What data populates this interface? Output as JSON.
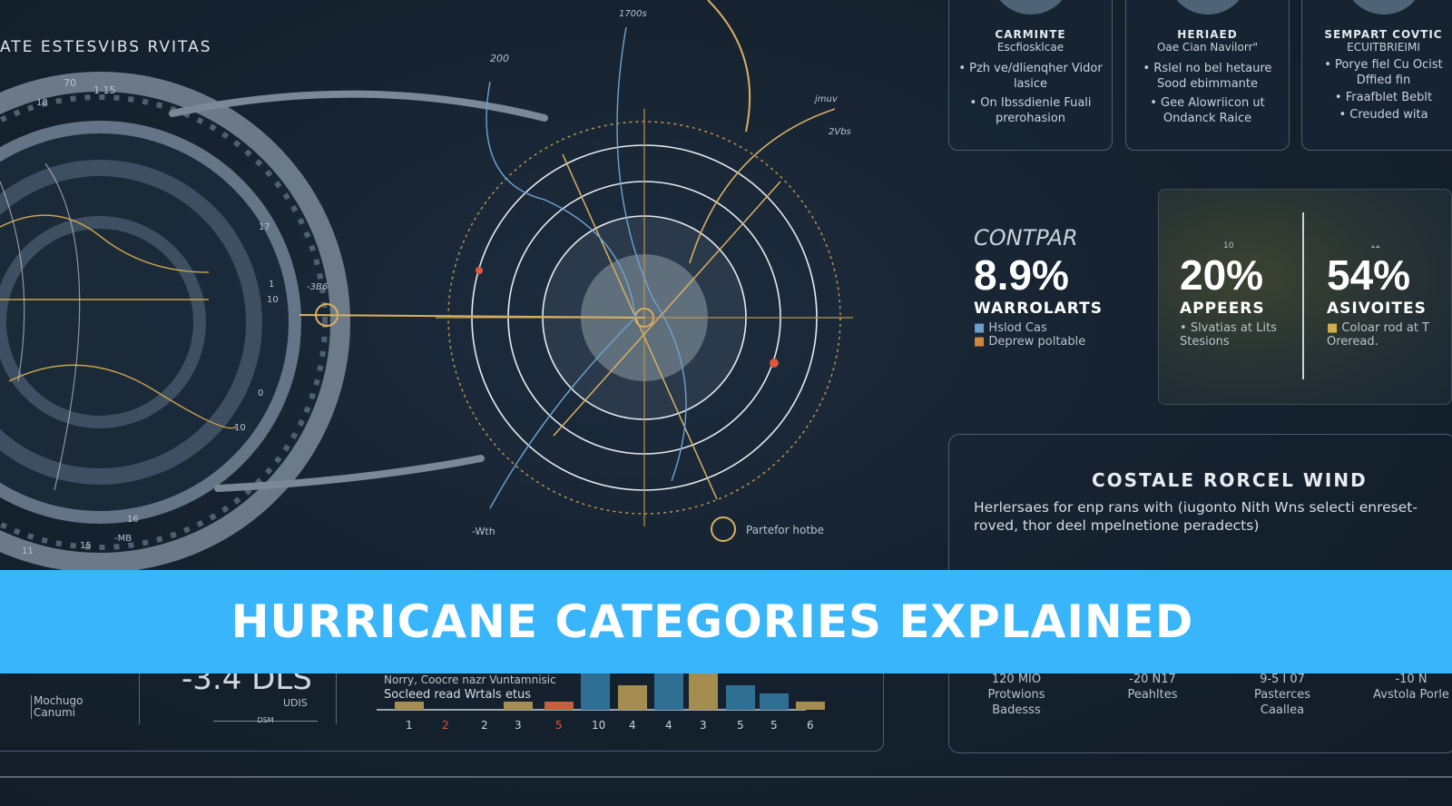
{
  "header": {
    "title": "ATE ESTESVIBS RVITAS"
  },
  "globe": {
    "labels": [
      "70",
      "1 15",
      "18",
      "10",
      "11",
      "17",
      "1",
      "10",
      "0",
      "10",
      "16",
      "15",
      "11",
      "-MB"
    ]
  },
  "radar": {
    "labels": [
      "1700s",
      "200",
      "jmuv",
      "2Vbs",
      "-Wth",
      "-3B6"
    ],
    "annotation": "Partefor hotbe"
  },
  "cards": [
    {
      "title": "CARMINTE",
      "subtitle": "Escfiosklcae",
      "bullets": [
        "• Pzh ve/dlienqher Vidor lasice",
        "• On Ibssdienie Fuali prerohasion"
      ]
    },
    {
      "title": "HERIAED",
      "subtitle": "Oae Cian Navilorr\"",
      "bullets": [
        "• Rslel no bel hetaure Sood ebimmante",
        "• Gee Alowriicon ut Ondanck Raice"
      ]
    },
    {
      "title": "SEMPART COVTIC",
      "subtitle": "ECUITBRIEIMI",
      "bullets": [
        "• Porye fiel Cu Ocist Dffied fin",
        "• Fraafblet Beblt",
        "• Creuded wita"
      ]
    }
  ],
  "stats": {
    "heading": "CONTPAR",
    "items": [
      {
        "value": "8.9%",
        "label": "WARROLARTS",
        "bullets": [
          "Hslod Cas",
          "Deprew poltable"
        ],
        "bullet_colors": [
          "#6c9fd0",
          "#d08a3c"
        ]
      },
      {
        "value": "20%",
        "label": "APPEERS",
        "caption": "10",
        "bullets": [
          "Slvatias at Lits Stesions"
        ],
        "bullet_colors": [
          "#b9c3cc"
        ]
      },
      {
        "value": "54%",
        "label": "ASIVOITES",
        "caption": "12",
        "bullets": [
          "Coloar rod at T Oreread."
        ],
        "bullet_colors": [
          "#d4b04a"
        ]
      }
    ]
  },
  "wind": {
    "title": "COSTALE RORCEL WIND",
    "text": "Herlersaes for enp rans with (iugonto Nith Wns selecti enreset-roved, thor deel mpelnetione peradects)",
    "metrics": [
      {
        "value": "120 MIO",
        "label": "Protwions Badesss"
      },
      {
        "value": "-20 N17",
        "label": "Peahltes"
      },
      {
        "value": "9-5 I 07",
        "label": "Pasterces Caallea"
      },
      {
        "value": "-10 N",
        "label": "Avstola Porle"
      }
    ]
  },
  "bottom": {
    "brand": "Mochugo Canumi",
    "metric_value": "-3.4 DLS",
    "metric_unit": "UDIS",
    "metric_caption": "DSM",
    "chart_line1": "Norry, Coocre nazr Vuntamnisic",
    "chart_line2": "Socleed read Wrtals etus"
  },
  "chart_data": {
    "type": "bar",
    "categories": [
      "1",
      "2",
      "2",
      "3",
      "5",
      "10",
      "4",
      "4",
      "3",
      "5",
      "5",
      "6"
    ],
    "category_colors": [
      "#c9d2dc",
      "#e0563a",
      "#c9d2dc",
      "#c9d2dc",
      "#e0563a",
      "#c9d2dc",
      "#c9d2dc",
      "#c9d2dc",
      "#c9d2dc",
      "#c9d2dc",
      "#c9d2dc",
      "#c9d2dc"
    ],
    "bar_colors": [
      "#a58d4f",
      "#a58d4f",
      "#a58d4f",
      "#a58d4f",
      "#c0623a",
      "#2f6f94",
      "#a58d4f",
      "#2f6f94",
      "#a58d4f",
      "#2f6f94",
      "#2f6f94",
      "#a58d4f"
    ],
    "values": [
      1,
      0,
      0,
      1,
      1,
      5,
      3,
      5,
      5,
      3,
      2,
      1
    ]
  },
  "banner": {
    "text": "HURRICANE CATEGORIES EXPLAINED",
    "color": "#38b5fb"
  }
}
